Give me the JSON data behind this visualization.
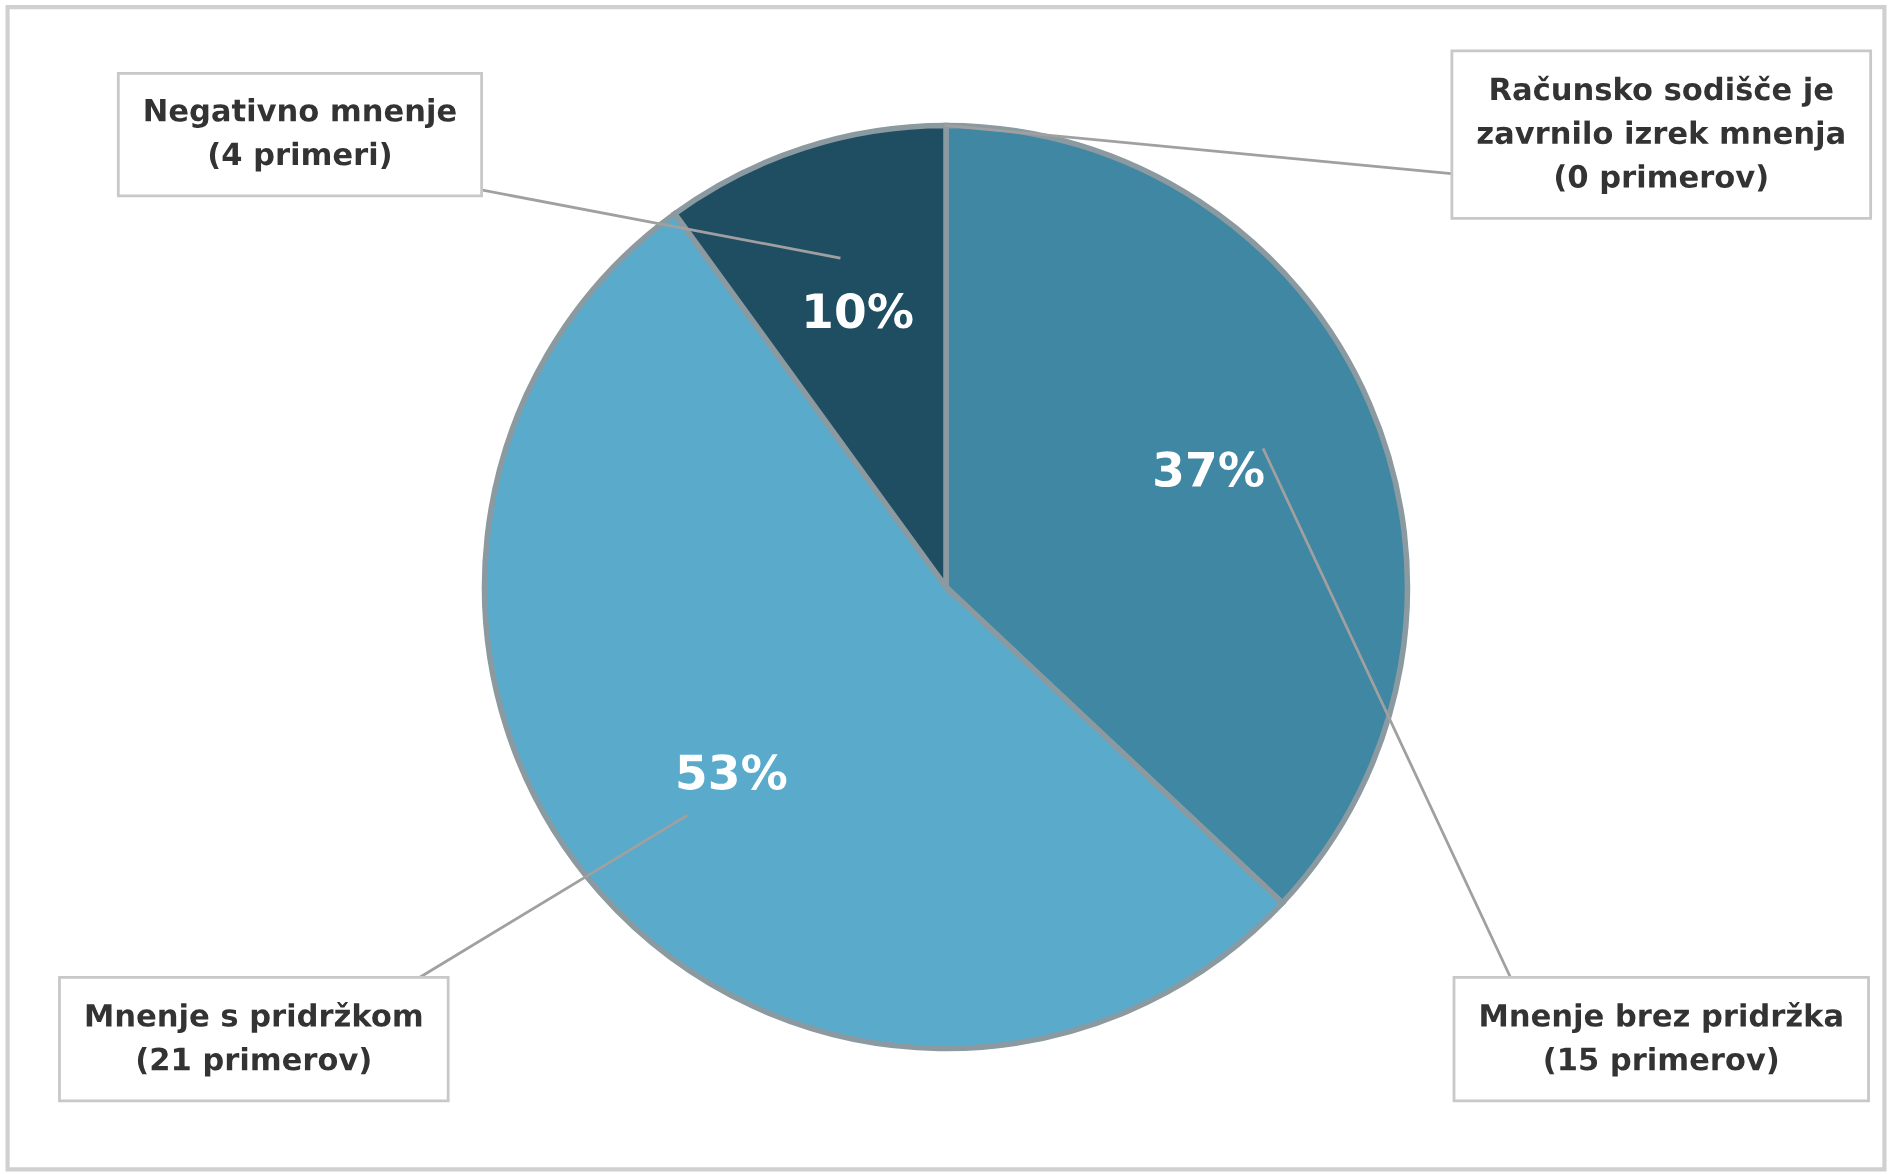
{
  "chart_data": {
    "type": "pie",
    "categories": [
      "Računsko sodišče je\nzavrnilo izrek mnenja\n(0 primerov)",
      "Mnenje brez pridržka\n(15 primerov)",
      "Mnenje s pridržkom\n(21 primerov)",
      "Negativno mnenje\n(4 primeri)"
    ],
    "values": [
      0,
      37,
      53,
      10
    ],
    "colors": [
      "#2f6f88",
      "#3f87a3",
      "#5aaacb",
      "#1f4e63"
    ],
    "value_labels": [
      null,
      "37%",
      "53%",
      "10%"
    ],
    "legend": false
  }
}
